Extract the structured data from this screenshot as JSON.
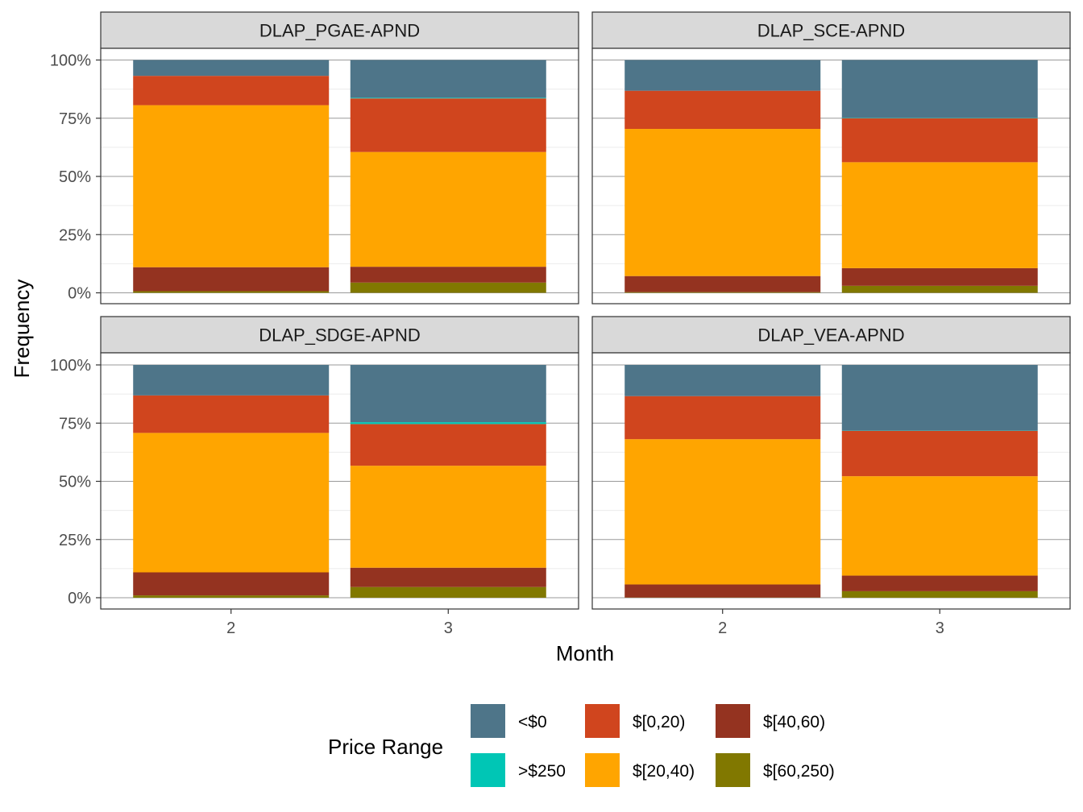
{
  "chart_data": {
    "type": "bar",
    "stacked": "percent",
    "facet": "wrap 2x2",
    "xlabel": "Month",
    "ylabel": "Frequency",
    "y_ticks": [
      "0%",
      "25%",
      "50%",
      "75%",
      "100%"
    ],
    "ylim": [
      0,
      100
    ],
    "categories": [
      "2",
      "3"
    ],
    "legend": {
      "title": "Price Range",
      "position": "bottom",
      "entries": [
        "<$0",
        ">$250",
        "$[0,20)",
        "$[20,40)",
        "$[40,60)",
        "$[60,250)"
      ]
    },
    "stack_order_bottom_to_top": [
      "$[60,250)",
      "$[40,60)",
      "$[20,40)",
      "$[0,20)",
      ">$250",
      "<$0"
    ],
    "colors": {
      "<$0": "#4E7589",
      ">$250": "#00C6B5",
      "$[0,20)": "#D0451E",
      "$[20,40)": "#FFA500",
      "$[40,60)": "#943320",
      "$[60,250)": "#817800"
    },
    "panels": [
      {
        "label": "DLAP_PGAE-APND",
        "bars": [
          {
            "month": "2",
            "values": {
              "$[60,250)": 0.7,
              "$[40,60)": 10.3,
              "$[20,40)": 69.6,
              "$[0,20)": 12.6,
              ">$250": 0.0,
              "<$0": 6.8
            }
          },
          {
            "month": "3",
            "values": {
              "$[60,250)": 4.4,
              "$[40,60)": 6.8,
              "$[20,40)": 49.3,
              "$[0,20)": 23.0,
              ">$250": 0.3,
              "<$0": 16.2
            }
          }
        ]
      },
      {
        "label": "DLAP_SCE-APND",
        "bars": [
          {
            "month": "2",
            "values": {
              "$[60,250)": 0.3,
              "$[40,60)": 6.9,
              "$[20,40)": 63.2,
              "$[0,20)": 16.4,
              ">$250": 0.0,
              "<$0": 13.2
            }
          },
          {
            "month": "3",
            "values": {
              "$[60,250)": 3.0,
              "$[40,60)": 7.6,
              "$[20,40)": 45.5,
              "$[0,20)": 18.9,
              ">$250": 0.2,
              "<$0": 24.8
            }
          }
        ]
      },
      {
        "label": "DLAP_SDGE-APND",
        "bars": [
          {
            "month": "2",
            "values": {
              "$[60,250)": 1.0,
              "$[40,60)": 9.9,
              "$[20,40)": 59.9,
              "$[0,20)": 16.1,
              ">$250": 0.0,
              "<$0": 13.1
            }
          },
          {
            "month": "3",
            "values": {
              "$[60,250)": 4.6,
              "$[40,60)": 8.3,
              "$[20,40)": 43.8,
              "$[0,20)": 17.9,
              ">$250": 0.8,
              "<$0": 24.6
            }
          }
        ]
      },
      {
        "label": "DLAP_VEA-APND",
        "bars": [
          {
            "month": "2",
            "values": {
              "$[60,250)": 0.1,
              "$[40,60)": 5.6,
              "$[20,40)": 62.4,
              "$[0,20)": 18.5,
              ">$250": 0.0,
              "<$0": 13.4
            }
          },
          {
            "month": "3",
            "values": {
              "$[60,250)": 2.8,
              "$[40,60)": 6.7,
              "$[20,40)": 42.7,
              "$[0,20)": 19.5,
              ">$250": 0.1,
              "<$0": 28.2
            }
          }
        ]
      }
    ]
  }
}
